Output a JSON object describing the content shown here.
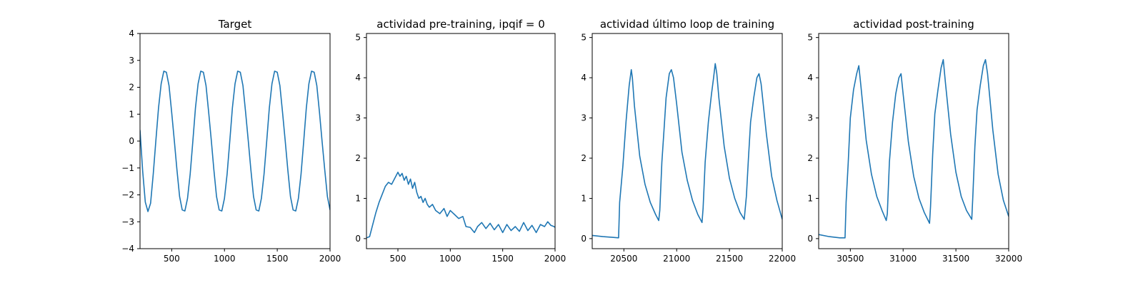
{
  "chart_data": [
    {
      "type": "line",
      "title": "Target",
      "xlabel": "",
      "ylabel": "",
      "xlim": [
        200,
        2000
      ],
      "ylim": [
        -4,
        4
      ],
      "xticks": [
        500,
        1000,
        1500,
        2000
      ],
      "yticks": [
        -4,
        -3,
        -2,
        -1,
        0,
        1,
        2,
        3,
        4
      ],
      "grid": false,
      "series": [
        {
          "color": "#1f77b4",
          "x": [
            200,
            225,
            250,
            275,
            300,
            325,
            350,
            375,
            400,
            425,
            450,
            475,
            500,
            525,
            550,
            575,
            600,
            625,
            650,
            675,
            700,
            725,
            750,
            775,
            800,
            825,
            850,
            875,
            900,
            925,
            950,
            975,
            1000,
            1025,
            1050,
            1075,
            1100,
            1125,
            1150,
            1175,
            1200,
            1225,
            1250,
            1275,
            1300,
            1325,
            1350,
            1375,
            1400,
            1425,
            1450,
            1475,
            1500,
            1525,
            1550,
            1575,
            1600,
            1625,
            1650,
            1675,
            1700,
            1725,
            1750,
            1775,
            1800,
            1825,
            1850,
            1875,
            1900,
            1925,
            1950,
            1975,
            2000
          ],
          "y": [
            0.41,
            -1.11,
            -2.27,
            -2.62,
            -2.31,
            -1.23,
            0.02,
            1.23,
            2.13,
            2.6,
            2.56,
            2.06,
            1.07,
            0.02,
            -1.07,
            -2.06,
            -2.56,
            -2.6,
            -2.13,
            -1.23,
            -0.02,
            1.23,
            2.13,
            2.6,
            2.56,
            2.06,
            1.07,
            0.02,
            -1.07,
            -2.06,
            -2.56,
            -2.6,
            -2.13,
            -1.23,
            -0.02,
            1.23,
            2.13,
            2.6,
            2.56,
            2.06,
            1.07,
            0.02,
            -1.07,
            -2.06,
            -2.56,
            -2.6,
            -2.13,
            -1.23,
            -0.02,
            1.23,
            2.13,
            2.6,
            2.56,
            2.06,
            1.07,
            0.02,
            -1.07,
            -2.06,
            -2.56,
            -2.6,
            -2.13,
            -1.23,
            -0.02,
            1.23,
            2.13,
            2.6,
            2.56,
            2.06,
            1.07,
            -0.02,
            -1.07,
            -2.06,
            -2.56
          ]
        }
      ]
    },
    {
      "type": "line",
      "title": "actividad pre-training, ipqif = 0",
      "xlabel": "",
      "ylabel": "",
      "xlim": [
        200,
        2000
      ],
      "ylim": [
        -0.25,
        5.1
      ],
      "xticks": [
        500,
        1000,
        1500,
        2000
      ],
      "yticks": [
        0,
        1,
        2,
        3,
        4,
        5
      ],
      "grid": false,
      "series": [
        {
          "color": "#1f77b4",
          "x": [
            200,
            230,
            260,
            290,
            320,
            350,
            380,
            410,
            440,
            470,
            500,
            520,
            540,
            560,
            580,
            600,
            620,
            640,
            660,
            680,
            700,
            720,
            740,
            760,
            780,
            800,
            830,
            860,
            900,
            940,
            970,
            1000,
            1040,
            1080,
            1120,
            1150,
            1190,
            1230,
            1260,
            1300,
            1340,
            1380,
            1420,
            1460,
            1500,
            1540,
            1580,
            1620,
            1660,
            1700,
            1740,
            1780,
            1820,
            1860,
            1900,
            1930,
            1960,
            1990,
            2000
          ],
          "y": [
            0.02,
            0.05,
            0.35,
            0.65,
            0.9,
            1.1,
            1.3,
            1.4,
            1.35,
            1.5,
            1.65,
            1.55,
            1.62,
            1.45,
            1.55,
            1.35,
            1.48,
            1.25,
            1.4,
            1.15,
            1.0,
            1.05,
            0.9,
            1.0,
            0.85,
            0.78,
            0.85,
            0.7,
            0.62,
            0.75,
            0.55,
            0.7,
            0.6,
            0.5,
            0.55,
            0.3,
            0.28,
            0.15,
            0.3,
            0.4,
            0.25,
            0.38,
            0.22,
            0.35,
            0.15,
            0.35,
            0.2,
            0.3,
            0.18,
            0.4,
            0.2,
            0.33,
            0.15,
            0.35,
            0.3,
            0.42,
            0.33,
            0.3,
            0.28
          ]
        }
      ]
    },
    {
      "type": "line",
      "title": "actividad último loop de training",
      "xlabel": "",
      "ylabel": "",
      "xlim": [
        20200,
        22000
      ],
      "ylim": [
        -0.25,
        5.1
      ],
      "xticks": [
        20500,
        21000,
        21500,
        22000
      ],
      "yticks": [
        0,
        1,
        2,
        3,
        4,
        5
      ],
      "grid": false,
      "series": [
        {
          "color": "#1f77b4",
          "x": [
            20200,
            20300,
            20400,
            20450,
            20460,
            20490,
            20520,
            20550,
            20570,
            20580,
            20600,
            20650,
            20700,
            20750,
            20800,
            20830,
            20840,
            20860,
            20880,
            20900,
            20930,
            20950,
            20970,
            21000,
            21050,
            21100,
            21150,
            21200,
            21240,
            21250,
            21270,
            21300,
            21330,
            21350,
            21365,
            21380,
            21400,
            21450,
            21500,
            21550,
            21600,
            21640,
            21660,
            21680,
            21700,
            21730,
            21760,
            21780,
            21800,
            21850,
            21900,
            21950,
            22000
          ],
          "y": [
            0.08,
            0.05,
            0.03,
            0.02,
            0.9,
            1.8,
            2.9,
            3.8,
            4.2,
            4.0,
            3.3,
            2.05,
            1.35,
            0.9,
            0.6,
            0.45,
            0.7,
            1.9,
            2.7,
            3.5,
            4.1,
            4.2,
            4.0,
            3.35,
            2.15,
            1.45,
            0.95,
            0.6,
            0.4,
            0.75,
            1.9,
            2.9,
            3.6,
            4.0,
            4.35,
            4.1,
            3.5,
            2.3,
            1.5,
            1.0,
            0.65,
            0.48,
            1.05,
            2.0,
            2.9,
            3.5,
            4.0,
            4.1,
            3.85,
            2.6,
            1.55,
            0.95,
            0.48
          ]
        }
      ]
    },
    {
      "type": "line",
      "title": "actividad post-training",
      "xlabel": "",
      "ylabel": "",
      "xlim": [
        30200,
        32000
      ],
      "ylim": [
        -0.25,
        5.1
      ],
      "xticks": [
        30500,
        31000,
        31500,
        32000
      ],
      "yticks": [
        0,
        1,
        2,
        3,
        4,
        5
      ],
      "grid": false,
      "series": [
        {
          "color": "#1f77b4",
          "x": [
            30200,
            30300,
            30400,
            30450,
            30460,
            30480,
            30500,
            30530,
            30560,
            30580,
            30600,
            30650,
            30700,
            30750,
            30800,
            30840,
            30850,
            30870,
            30900,
            30930,
            30960,
            30980,
            31000,
            31050,
            31100,
            31150,
            31200,
            31250,
            31260,
            31280,
            31300,
            31330,
            31360,
            31380,
            31400,
            31450,
            31500,
            31550,
            31600,
            31650,
            31660,
            31680,
            31700,
            31730,
            31760,
            31780,
            31800,
            31850,
            31900,
            31950,
            32000
          ],
          "y": [
            0.1,
            0.05,
            0.02,
            0.02,
            0.9,
            1.9,
            3.0,
            3.7,
            4.1,
            4.3,
            3.8,
            2.45,
            1.6,
            1.05,
            0.7,
            0.45,
            0.62,
            1.9,
            2.9,
            3.6,
            4.0,
            4.1,
            3.6,
            2.4,
            1.55,
            1.0,
            0.65,
            0.38,
            0.8,
            2.1,
            3.1,
            3.7,
            4.25,
            4.45,
            3.9,
            2.6,
            1.65,
            1.05,
            0.7,
            0.48,
            1.05,
            2.3,
            3.2,
            3.8,
            4.3,
            4.45,
            4.1,
            2.7,
            1.6,
            0.95,
            0.55
          ]
        }
      ]
    }
  ]
}
